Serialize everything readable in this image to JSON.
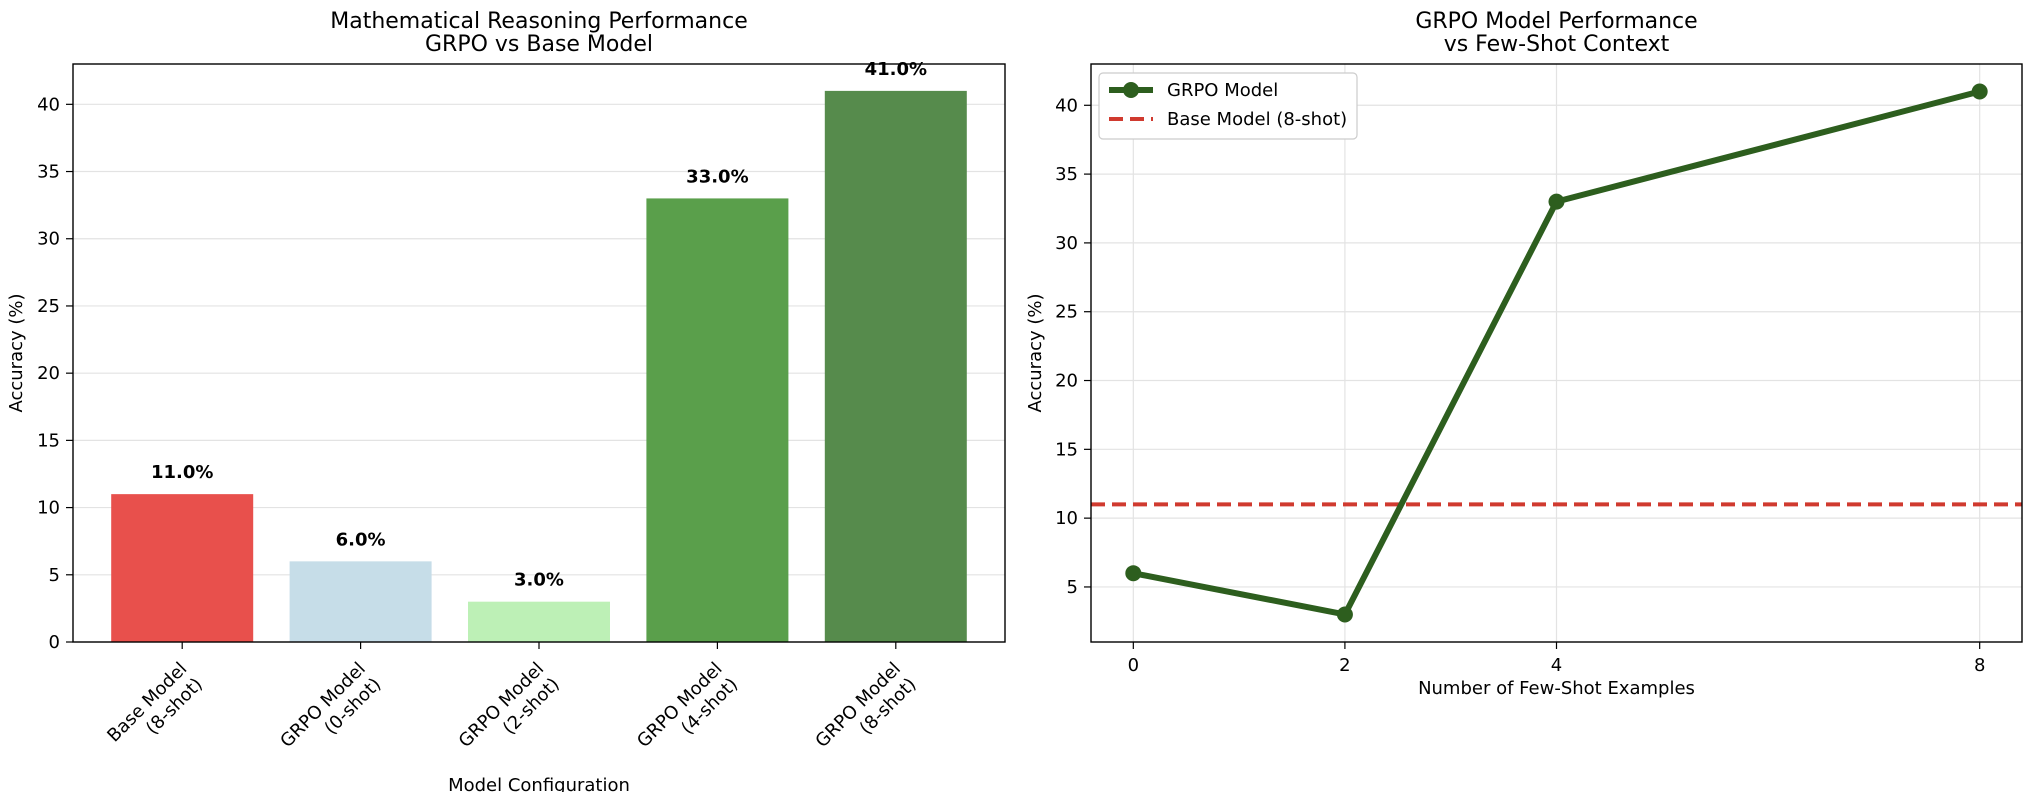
{
  "chart_data": [
    {
      "type": "bar",
      "title": "Mathematical Reasoning Performance\nGRPO vs Base Model",
      "xlabel": "Model Configuration",
      "ylabel": "Accuracy (%)",
      "categories": [
        "Base Model\n(8-shot)",
        "GRPO Model\n(0-shot)",
        "GRPO Model\n(2-shot)",
        "GRPO Model\n(4-shot)",
        "GRPO Model\n(8-shot)"
      ],
      "values": [
        11.0,
        6.0,
        3.0,
        33.0,
        41.0
      ],
      "value_labels": [
        "11.0%",
        "6.0%",
        "3.0%",
        "33.0%",
        "41.0%"
      ],
      "colors": [
        "#e8504c",
        "#c6dde8",
        "#bdf0b6",
        "#5a9f4b",
        "#568b4c"
      ],
      "ylim": [
        0,
        43
      ],
      "yticks": [
        0,
        5,
        10,
        15,
        20,
        25,
        30,
        35,
        40
      ],
      "grid": true
    },
    {
      "type": "line",
      "title": "GRPO Model Performance\nvs Few-Shot Context",
      "xlabel": "Number of Few-Shot Examples",
      "ylabel": "Accuracy (%)",
      "x": [
        0,
        2,
        4,
        8
      ],
      "xticks": [
        0,
        2,
        4,
        8
      ],
      "xlim": [
        -0.4,
        8.4
      ],
      "ylim": [
        1,
        43
      ],
      "yticks": [
        5,
        10,
        15,
        20,
        25,
        30,
        35,
        40
      ],
      "series": [
        {
          "name": "GRPO Model",
          "values": [
            6,
            3,
            33,
            41
          ],
          "color": "#2d5e1e",
          "style": "solid",
          "marker": "circle"
        },
        {
          "name": "Base Model (8-shot)",
          "hline": 11,
          "color": "#d03a2f",
          "style": "dashed"
        }
      ],
      "legend": "top-left",
      "grid": true
    }
  ]
}
